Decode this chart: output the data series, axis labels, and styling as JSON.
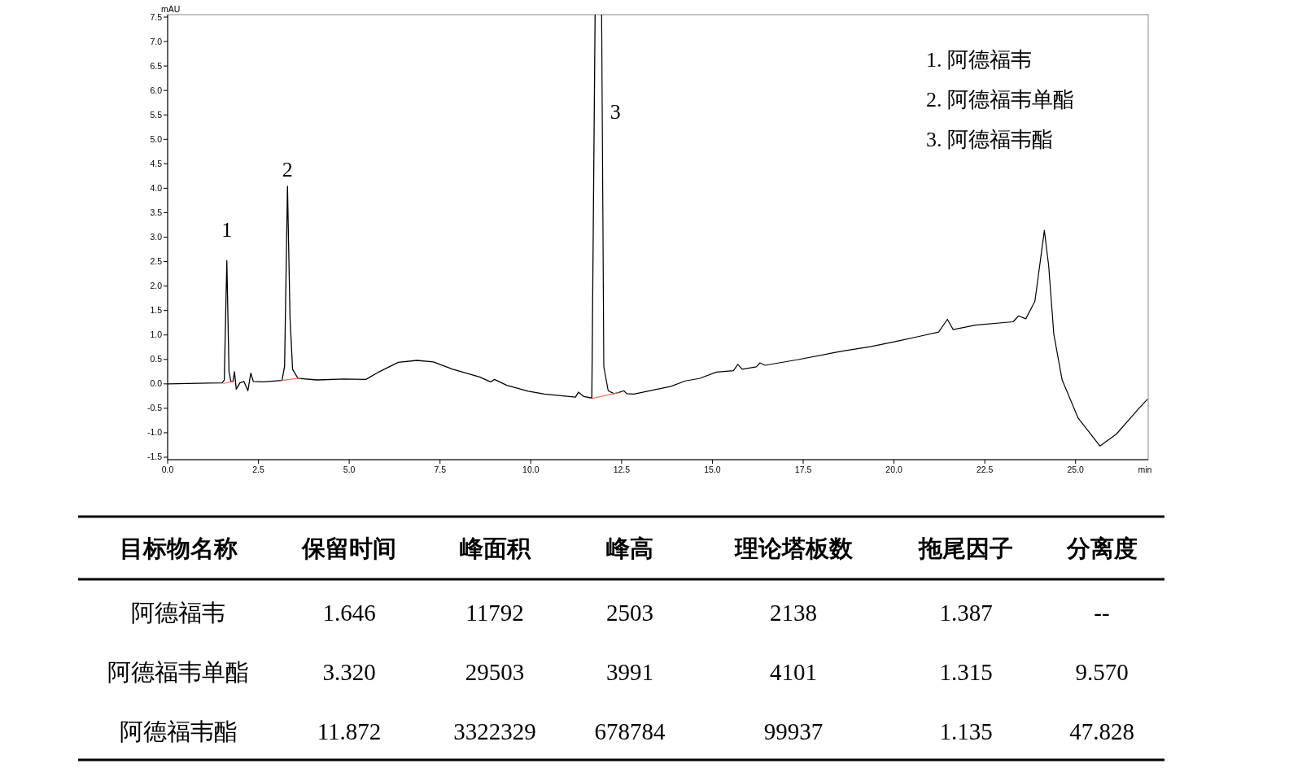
{
  "chart_data": [
    {
      "type": "line",
      "xlabel": "min",
      "ylabel": "mAU",
      "xlim": [
        0,
        27
      ],
      "ylim": [
        -1.55,
        7.55
      ],
      "xticks": [
        {
          "value": 0,
          "label": "0.0"
        },
        {
          "value": 2.5,
          "label": "2.5"
        },
        {
          "value": 5,
          "label": "5.0"
        },
        {
          "value": 7.5,
          "label": "7.5"
        },
        {
          "value": 10,
          "label": "10.0"
        },
        {
          "value": 12.5,
          "label": "12.5"
        },
        {
          "value": 15,
          "label": "15.0"
        },
        {
          "value": 17.5,
          "label": "17.5"
        },
        {
          "value": 20,
          "label": "20.0"
        },
        {
          "value": 22.5,
          "label": "22.5"
        },
        {
          "value": 25,
          "label": "25.0"
        }
      ],
      "yticks": [
        {
          "value": -1.5,
          "label": "-1.5"
        },
        {
          "value": -1,
          "label": "-1.0"
        },
        {
          "value": -0.5,
          "label": "-0.5"
        },
        {
          "value": 0,
          "label": "0.0"
        },
        {
          "value": 0.5,
          "label": "0.5"
        },
        {
          "value": 1,
          "label": "1.0"
        },
        {
          "value": 1.5,
          "label": "1.5"
        },
        {
          "value": 2,
          "label": "2.0"
        },
        {
          "value": 2.5,
          "label": "2.5"
        },
        {
          "value": 3,
          "label": "3.0"
        },
        {
          "value": 3.5,
          "label": "3.5"
        },
        {
          "value": 4,
          "label": "4.0"
        },
        {
          "value": 4.5,
          "label": "4.5"
        },
        {
          "value": 5,
          "label": "5.0"
        },
        {
          "value": 5.5,
          "label": "5.5"
        },
        {
          "value": 6,
          "label": "6.0"
        },
        {
          "value": 6.5,
          "label": "6.5"
        },
        {
          "value": 7,
          "label": "7.0"
        },
        {
          "value": 7.5,
          "label": "7.5"
        }
      ],
      "series": [
        {
          "color": "#000000",
          "x": [
            0,
            1.5,
            1.56,
            1.63,
            1.69,
            1.74,
            1.8,
            1.84,
            1.89,
            1.99,
            2.1,
            2.21,
            2.29,
            2.36,
            2.62,
            3.15,
            3.22,
            3.3,
            3.37,
            3.44,
            3.59,
            4.12,
            4.86,
            5.46,
            5.83,
            6.35,
            6.87,
            7.32,
            7.85,
            8.59,
            8.89,
            9.0,
            9.34,
            9.93,
            10.38,
            11.23,
            11.31,
            11.46,
            11.68,
            11.77
          ],
          "values": [
            0,
            0.02,
            0.08,
            2.52,
            0.25,
            0.05,
            0.05,
            0.25,
            -0.11,
            0.02,
            0.05,
            -0.14,
            0.22,
            0.05,
            0.04,
            0.07,
            0.36,
            4.04,
            1.35,
            0.3,
            0.11,
            0.08,
            0.1,
            0.09,
            0.25,
            0.44,
            0.48,
            0.45,
            0.3,
            0.14,
            0.04,
            0.09,
            -0.03,
            -0.15,
            -0.21,
            -0.27,
            -0.17,
            -0.26,
            -0.29,
            7.55
          ]
        },
        {
          "color": "#000000",
          "x": [
            11.95,
            12.01,
            12.13,
            12.29,
            12.41,
            12.56,
            12.64,
            12.84,
            13.86,
            14.25,
            14.64,
            15.11,
            15.58,
            15.7,
            15.82,
            16.21,
            16.31,
            16.45,
            17.39,
            18.57,
            19.35,
            20.14,
            20.69,
            21.23,
            21.47,
            21.63,
            22.24,
            23.28,
            23.43,
            23.63,
            23.88,
            24.03,
            24.14,
            24.26,
            24.4,
            24.63,
            25.07,
            25.67,
            26.12,
            26.71,
            26.97
          ],
          "values": [
            7.55,
            0.35,
            -0.14,
            -0.2,
            -0.18,
            -0.14,
            -0.2,
            -0.21,
            -0.05,
            0.06,
            0.11,
            0.24,
            0.27,
            0.4,
            0.3,
            0.35,
            0.43,
            0.38,
            0.5,
            0.67,
            0.76,
            0.88,
            0.97,
            1.06,
            1.32,
            1.11,
            1.2,
            1.27,
            1.39,
            1.33,
            1.69,
            2.52,
            3.14,
            2.41,
            1.02,
            0.08,
            -0.7,
            -1.27,
            -1.03,
            -0.53,
            -0.32
          ]
        },
        {
          "color": "#f07060",
          "x": [
            1.54,
            1.82
          ],
          "values": [
            0.01,
            0.05
          ]
        },
        {
          "color": "#f07060",
          "x": [
            3.15,
            3.67
          ],
          "values": [
            0.07,
            0.12
          ]
        },
        {
          "color": "#f07060",
          "x": [
            11.68,
            12.41
          ],
          "values": [
            -0.3,
            -0.18
          ]
        }
      ],
      "annotations": [
        {
          "text": "1",
          "x": 1.63,
          "y": 2.52
        },
        {
          "text": "2",
          "x": 3.3,
          "y": 4.04
        },
        {
          "text": "3",
          "x": 11.97,
          "y": 5.57
        },
        "1.  阿德福韦",
        "2.  阿德福韦单酯",
        "3.  阿德福韦酯"
      ]
    },
    {
      "type": "heatmap",
      "ylabel": "目标物名称",
      "categories": [
        "保留时间",
        "峰面积",
        "峰高",
        "理论塔板数",
        "拖尾因子",
        "分离度"
      ],
      "y_categories": [
        "阿德福韦",
        "阿德福韦单酯",
        "阿德福韦酯"
      ],
      "cells": [
        [
          1.646,
          11792,
          2503,
          2138,
          1.387,
          null
        ],
        [
          3.32,
          29503,
          3991,
          4101,
          1.315,
          9.57
        ],
        [
          11.872,
          3322329,
          678784,
          99937,
          1.135,
          47.828
        ]
      ],
      "cell_labels": [
        [
          "1.646",
          "11792",
          "2503",
          "2138",
          "1.387",
          "--"
        ],
        [
          "3.320",
          "29503",
          "3991",
          "4101",
          "1.315",
          "9.570"
        ],
        [
          "11.872",
          "3322329",
          "678784",
          "99937",
          "1.135",
          "47.828"
        ]
      ]
    }
  ]
}
